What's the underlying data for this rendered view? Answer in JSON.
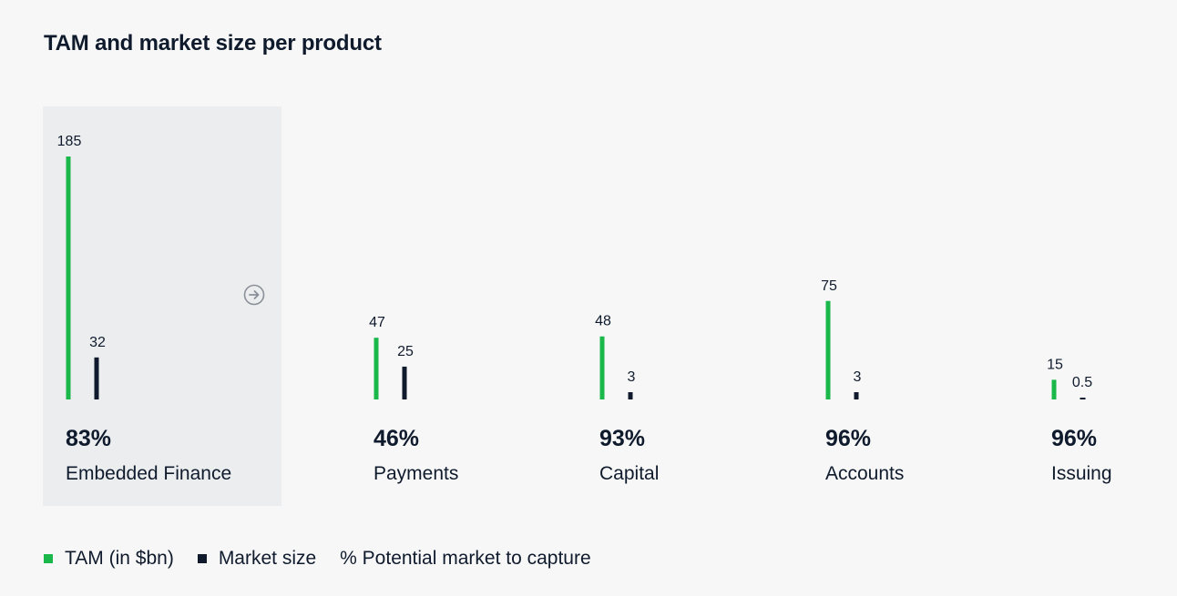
{
  "title": "TAM and market size per product",
  "colors": {
    "tam": "#1ab74a",
    "market": "#0f1b2d"
  },
  "chart_data": {
    "type": "bar",
    "title": "TAM and market size per product",
    "categories": [
      "Embedded Finance",
      "Payments",
      "Capital",
      "Accounts",
      "Issuing"
    ],
    "series": [
      {
        "name": "TAM (in $bn)",
        "values": [
          185,
          47,
          48,
          75,
          15
        ],
        "labels": [
          "185",
          "47",
          "48",
          "75",
          "15"
        ]
      },
      {
        "name": "Market size",
        "values": [
          32,
          25,
          3,
          3,
          0.5
        ],
        "labels": [
          "32",
          "25",
          "3",
          "3",
          "0.5"
        ]
      }
    ],
    "potential_pct": [
      "83%",
      "46%",
      "93%",
      "96%",
      "96%"
    ],
    "highlighted_category": "Embedded Finance",
    "ylim": [
      0,
      185
    ]
  },
  "legend": {
    "tam": "TAM (in $bn)",
    "market": "Market size",
    "pct": "% Potential market to capture"
  },
  "icons": {
    "next": "arrow-right-circle-icon"
  }
}
